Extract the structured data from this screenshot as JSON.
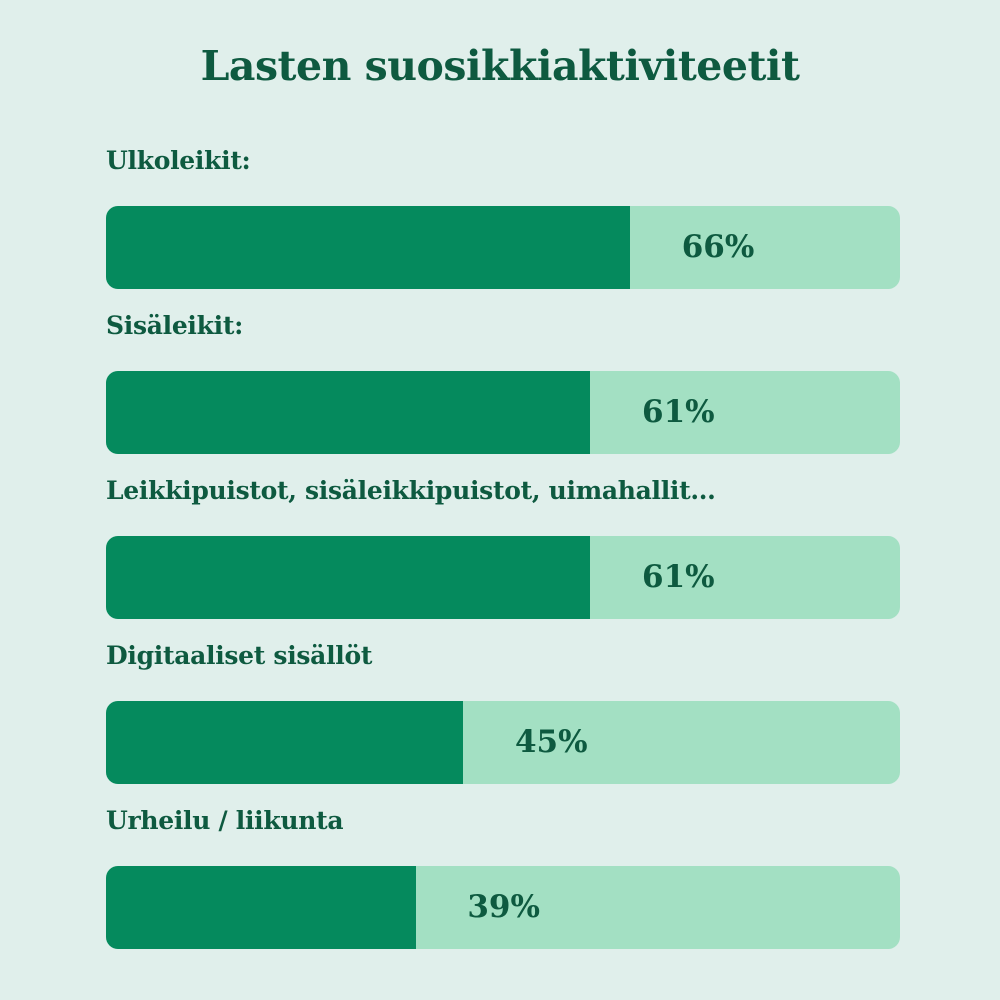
{
  "colors": {
    "background": "#e0efeb",
    "bar_fill": "#058a5d",
    "bar_track": "#a3e0c3",
    "text": "#0e5a40"
  },
  "chart_data": {
    "type": "bar",
    "orientation": "horizontal",
    "title": "Lasten suosikkiaktiviteetit",
    "categories": [
      "Ulkoleikit:",
      "Sisäleikit:",
      "Leikkipuistot, sisäleikkipuistot, uimahallit...",
      "Digitaaliset sisällöt",
      "Urheilu / liikunta"
    ],
    "values": [
      66,
      61,
      61,
      45,
      39
    ],
    "value_labels": [
      "66%",
      "61%",
      "61%",
      "45%",
      "39%"
    ],
    "unit": "%",
    "xlim": [
      0,
      100
    ],
    "grid": false
  }
}
